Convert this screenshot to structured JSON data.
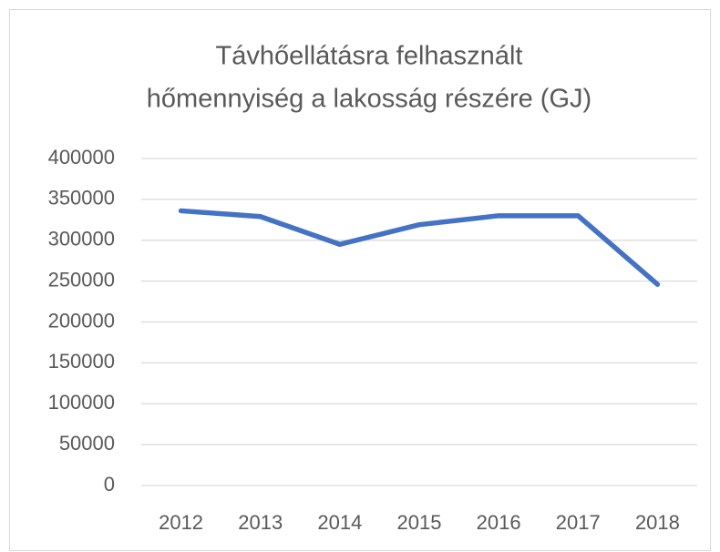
{
  "chart_data": {
    "type": "line",
    "title": [
      "Távhőellátásra felhasznált",
      "hőmennyiség a lakosság részére (GJ)"
    ],
    "categories": [
      "2012",
      "2013",
      "2014",
      "2015",
      "2016",
      "2017",
      "2018"
    ],
    "series": [
      {
        "color": "#4472c4",
        "values": [
          336000,
          329000,
          295000,
          319000,
          330000,
          330000,
          246000
        ]
      }
    ],
    "ylim": [
      0,
      400000
    ],
    "yticks": [
      0,
      50000,
      100000,
      150000,
      200000,
      250000,
      300000,
      350000,
      400000
    ],
    "grid": true
  }
}
